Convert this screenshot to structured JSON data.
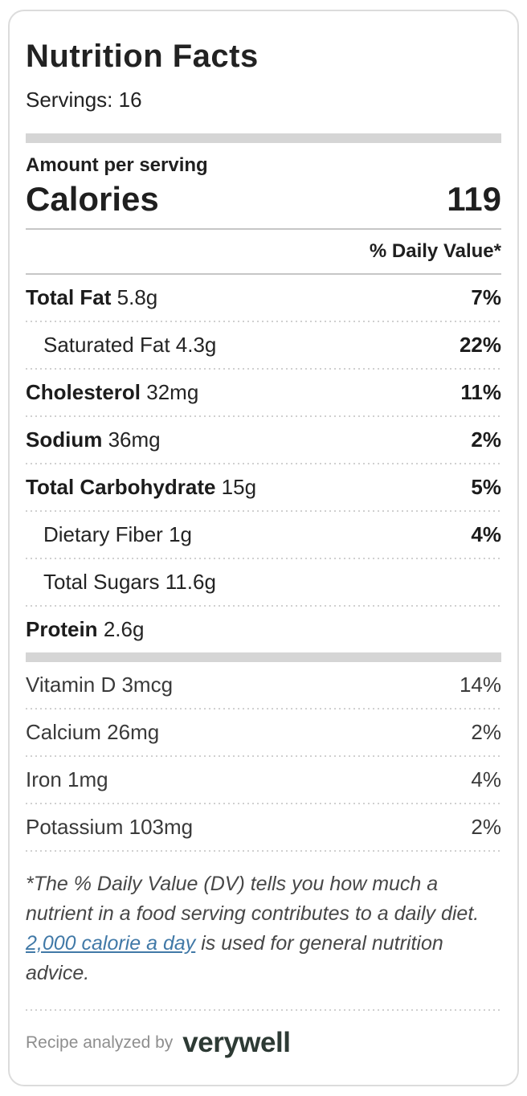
{
  "card": {
    "title": "Nutrition Facts",
    "servings": "Servings: 16",
    "amount_per_serving": "Amount per serving",
    "calories_label": "Calories",
    "calories_value": "119",
    "daily_value_header": "% Daily Value*",
    "nutrients": [
      {
        "name": "Total Fat",
        "amount": "5.8g",
        "dv": "7%"
      },
      {
        "name": "Saturated Fat",
        "amount": "4.3g",
        "dv": "22%"
      },
      {
        "name": "Cholesterol",
        "amount": "32mg",
        "dv": "11%"
      },
      {
        "name": "Sodium",
        "amount": "36mg",
        "dv": "2%"
      },
      {
        "name": "Total Carbohydrate",
        "amount": "15g",
        "dv": "5%"
      },
      {
        "name": "Dietary Fiber",
        "amount": "1g",
        "dv": "4%"
      },
      {
        "name": "Total Sugars",
        "amount": "11.6g",
        "dv": ""
      },
      {
        "name": "Protein",
        "amount": "2.6g",
        "dv": ""
      }
    ],
    "micronutrients": [
      {
        "name": "Vitamin D",
        "amount": "3mcg",
        "dv": "14%"
      },
      {
        "name": "Calcium",
        "amount": "26mg",
        "dv": "2%"
      },
      {
        "name": "Iron",
        "amount": "1mg",
        "dv": "4%"
      },
      {
        "name": "Potassium",
        "amount": "103mg",
        "dv": "2%"
      }
    ],
    "footnote": {
      "before_link": "*The % Daily Value (DV) tells you how much a nutrient in a food serving contributes to a daily diet. ",
      "link_text": "2,000 calorie a day",
      "after_link": " is used for general nutrition advice."
    },
    "footer": {
      "prefix": "Recipe analyzed by",
      "brand": "verywell"
    },
    "colors": {
      "link_blue": "#4179a7",
      "brand_dark_green": "#2d3a34",
      "divider_gray": "#d5d5d5"
    }
  }
}
